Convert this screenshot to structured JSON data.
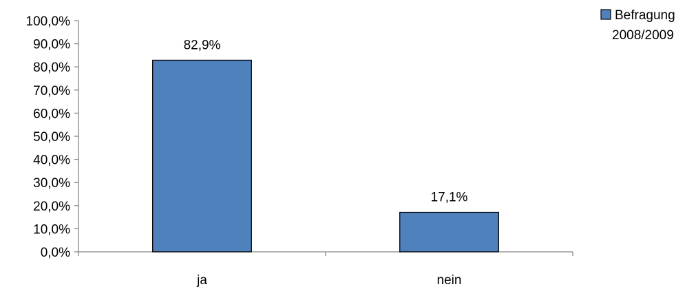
{
  "chart_data": {
    "type": "bar",
    "categories": [
      "ja",
      "nein"
    ],
    "series": [
      {
        "name": "Befragung 2008/2009",
        "legend_lines": [
          "Befragung",
          "2008/2009"
        ],
        "values": [
          82.9,
          17.1
        ],
        "labels": [
          "82,9%",
          "17,1%"
        ],
        "color": "#4f81bd"
      }
    ],
    "ylim": [
      0,
      100
    ],
    "yticks": [
      {
        "value": 0,
        "label": "0,0%"
      },
      {
        "value": 10,
        "label": "10,0%"
      },
      {
        "value": 20,
        "label": "20,0%"
      },
      {
        "value": 30,
        "label": "30,0%"
      },
      {
        "value": 40,
        "label": "40,0%"
      },
      {
        "value": 50,
        "label": "50,0%"
      },
      {
        "value": 60,
        "label": "60,0%"
      },
      {
        "value": 70,
        "label": "70,0%"
      },
      {
        "value": 80,
        "label": "80,0%"
      },
      {
        "value": 90,
        "label": "90,0%"
      },
      {
        "value": 100,
        "label": "100,0%"
      }
    ],
    "grid": false,
    "legend_position": "top-right",
    "xlabel": "",
    "ylabel": "",
    "title": ""
  }
}
